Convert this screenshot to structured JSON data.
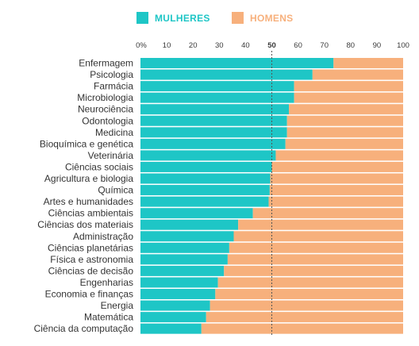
{
  "colors": {
    "women": "#1ec6c6",
    "men": "#f7b07c",
    "text": "#333333"
  },
  "legend": {
    "women_label": "MULHERES",
    "men_label": "HOMENS"
  },
  "chart_data": {
    "type": "bar",
    "orientation": "horizontal",
    "stacked": "percent",
    "title": "",
    "xlabel": "",
    "ylabel": "",
    "xlim": [
      0,
      100
    ],
    "x_ticks": [
      "0%",
      "10",
      "20",
      "30",
      "40",
      "50",
      "60",
      "70",
      "80",
      "90",
      "100"
    ],
    "reference_line": 50,
    "legend_position": "top",
    "categories": [
      "Enfermagem",
      "Psicologia",
      "Farmácia",
      "Microbiologia",
      "Neurociência",
      "Odontologia",
      "Medicina",
      "Bioquímica e genética",
      "Veterinária",
      "Ciências sociais",
      "Agricultura e biologia",
      "Química",
      "Artes e humanidades",
      "Ciências ambientais",
      "Ciências dos materiais",
      "Administração",
      "Ciências planetárias",
      "Física e astronomia",
      "Ciências de decisão",
      "Engenharias",
      "Economia e finanças",
      "Energia",
      "Matemática",
      "Ciência da computação"
    ],
    "series": [
      {
        "name": "MULHERES",
        "values": [
          73.5,
          65.5,
          58.5,
          58.5,
          56.5,
          55.8,
          55.8,
          55.2,
          51.5,
          50.0,
          49.4,
          49.2,
          48.8,
          42.8,
          37.2,
          35.5,
          33.8,
          33.2,
          31.8,
          29.5,
          28.5,
          26.5,
          25.0,
          23.2
        ]
      },
      {
        "name": "HOMENS",
        "values": [
          26.5,
          34.5,
          41.5,
          41.5,
          43.5,
          44.2,
          44.2,
          44.8,
          48.5,
          50.0,
          50.6,
          50.8,
          51.2,
          57.2,
          62.8,
          64.5,
          66.2,
          66.8,
          68.2,
          70.5,
          71.5,
          73.5,
          75.0,
          76.8
        ]
      }
    ]
  }
}
